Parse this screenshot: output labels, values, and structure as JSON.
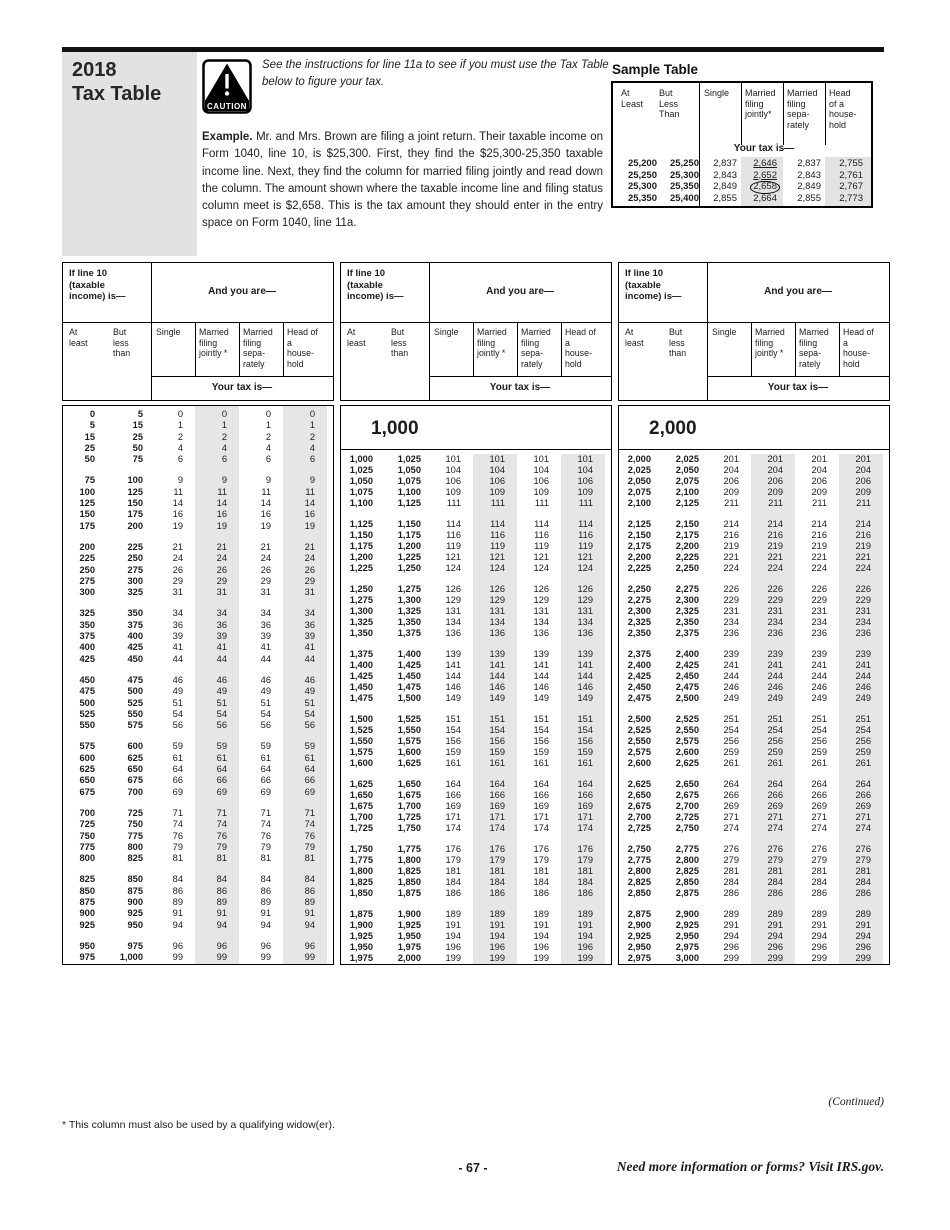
{
  "page": {
    "year": "2018",
    "title": "Tax Table",
    "caution": {
      "label": "CAUTION",
      "text": "See the instructions for line 11a to see if you must use the Tax Table below to figure your tax."
    },
    "example": {
      "lead": "Example.",
      "text": " Mr. and Mrs. Brown are filing a joint return. Their taxable income on Form 1040, line 10, is $25,300. First, they find the $25,300-25,350 taxable income line. Next, they find the column for married filing jointly and read down the column. The amount shown where the taxable income line and filing status column meet is $2,658. This is the tax amount they should enter in the entry space on Form 1040, line 11a."
    }
  },
  "sample_table": {
    "title": "Sample Table",
    "headers": {
      "at_least": "At\nLeast",
      "but_less": "But\nLess\nThan",
      "single": "Single",
      "mfj": "Married\nfiling\njointly*",
      "mfs": "Married\nfiling\nsepa-\nrately",
      "hoh": "Head\nof a\nhouse-\nhold"
    },
    "your_tax_label": "Your tax is—",
    "rows": [
      {
        "at_least": "25,200",
        "but_less": "25,250",
        "single": "2,837",
        "mfj": "2,646",
        "mfs": "2,837",
        "hoh": "2,755",
        "mfj_mark": "underline"
      },
      {
        "at_least": "25,250",
        "but_less": "25,300",
        "single": "2,843",
        "mfj": "2,652",
        "mfs": "2,843",
        "hoh": "2,761",
        "mfj_mark": "underline"
      },
      {
        "at_least": "25,300",
        "but_less": "25,350",
        "single": "2,849",
        "mfj": "2,658",
        "mfs": "2,849",
        "hoh": "2,767",
        "mfj_mark": "circle"
      },
      {
        "at_least": "25,350",
        "but_less": "25,400",
        "single": "2,855",
        "mfj": "2,664",
        "mfs": "2,855",
        "hoh": "2,773",
        "mfj_mark": "none"
      }
    ]
  },
  "column_headers": {
    "if_line": "If line 10\n(taxable\nincome) is—",
    "and_you_are": "And you are—",
    "at_least": "At\nleast",
    "but_less": "But\nless\nthan",
    "single": "Single",
    "mfj": "Married\nfiling\njointly *",
    "mfs": "Married\nfiling\nsepa-\nrately",
    "hoh": "Head of\na\nhouse-\nhold",
    "your_tax_label": "Your tax is—"
  },
  "tax_tables": [
    {
      "section": "",
      "groups": [
        [
          [
            "0",
            "5",
            "0"
          ],
          [
            "5",
            "15",
            "1"
          ],
          [
            "15",
            "25",
            "2"
          ],
          [
            "25",
            "50",
            "4"
          ],
          [
            "50",
            "75",
            "6"
          ]
        ],
        [
          [
            "75",
            "100",
            "9"
          ],
          [
            "100",
            "125",
            "11"
          ],
          [
            "125",
            "150",
            "14"
          ],
          [
            "150",
            "175",
            "16"
          ],
          [
            "175",
            "200",
            "19"
          ]
        ],
        [
          [
            "200",
            "225",
            "21"
          ],
          [
            "225",
            "250",
            "24"
          ],
          [
            "250",
            "275",
            "26"
          ],
          [
            "275",
            "300",
            "29"
          ],
          [
            "300",
            "325",
            "31"
          ]
        ],
        [
          [
            "325",
            "350",
            "34"
          ],
          [
            "350",
            "375",
            "36"
          ],
          [
            "375",
            "400",
            "39"
          ],
          [
            "400",
            "425",
            "41"
          ],
          [
            "425",
            "450",
            "44"
          ]
        ],
        [
          [
            "450",
            "475",
            "46"
          ],
          [
            "475",
            "500",
            "49"
          ],
          [
            "500",
            "525",
            "51"
          ],
          [
            "525",
            "550",
            "54"
          ],
          [
            "550",
            "575",
            "56"
          ]
        ],
        [
          [
            "575",
            "600",
            "59"
          ],
          [
            "600",
            "625",
            "61"
          ],
          [
            "625",
            "650",
            "64"
          ],
          [
            "650",
            "675",
            "66"
          ],
          [
            "675",
            "700",
            "69"
          ]
        ],
        [
          [
            "700",
            "725",
            "71"
          ],
          [
            "725",
            "750",
            "74"
          ],
          [
            "750",
            "775",
            "76"
          ],
          [
            "775",
            "800",
            "79"
          ],
          [
            "800",
            "825",
            "81"
          ]
        ],
        [
          [
            "825",
            "850",
            "84"
          ],
          [
            "850",
            "875",
            "86"
          ],
          [
            "875",
            "900",
            "89"
          ],
          [
            "900",
            "925",
            "91"
          ],
          [
            "925",
            "950",
            "94"
          ]
        ],
        [
          [
            "950",
            "975",
            "96"
          ],
          [
            "975",
            "1,000",
            "99"
          ]
        ]
      ]
    },
    {
      "section": "1,000",
      "groups": [
        [
          [
            "1,000",
            "1,025",
            "101"
          ],
          [
            "1,025",
            "1,050",
            "104"
          ],
          [
            "1,050",
            "1,075",
            "106"
          ],
          [
            "1,075",
            "1,100",
            "109"
          ],
          [
            "1,100",
            "1,125",
            "111"
          ]
        ],
        [
          [
            "1,125",
            "1,150",
            "114"
          ],
          [
            "1,150",
            "1,175",
            "116"
          ],
          [
            "1,175",
            "1,200",
            "119"
          ],
          [
            "1,200",
            "1,225",
            "121"
          ],
          [
            "1,225",
            "1,250",
            "124"
          ]
        ],
        [
          [
            "1,250",
            "1,275",
            "126"
          ],
          [
            "1,275",
            "1,300",
            "129"
          ],
          [
            "1,300",
            "1,325",
            "131"
          ],
          [
            "1,325",
            "1,350",
            "134"
          ],
          [
            "1,350",
            "1,375",
            "136"
          ]
        ],
        [
          [
            "1,375",
            "1,400",
            "139"
          ],
          [
            "1,400",
            "1,425",
            "141"
          ],
          [
            "1,425",
            "1,450",
            "144"
          ],
          [
            "1,450",
            "1,475",
            "146"
          ],
          [
            "1,475",
            "1,500",
            "149"
          ]
        ],
        [
          [
            "1,500",
            "1,525",
            "151"
          ],
          [
            "1,525",
            "1,550",
            "154"
          ],
          [
            "1,550",
            "1,575",
            "156"
          ],
          [
            "1,575",
            "1,600",
            "159"
          ],
          [
            "1,600",
            "1,625",
            "161"
          ]
        ],
        [
          [
            "1,625",
            "1,650",
            "164"
          ],
          [
            "1,650",
            "1,675",
            "166"
          ],
          [
            "1,675",
            "1,700",
            "169"
          ],
          [
            "1,700",
            "1,725",
            "171"
          ],
          [
            "1,725",
            "1,750",
            "174"
          ]
        ],
        [
          [
            "1,750",
            "1,775",
            "176"
          ],
          [
            "1,775",
            "1,800",
            "179"
          ],
          [
            "1,800",
            "1,825",
            "181"
          ],
          [
            "1,825",
            "1,850",
            "184"
          ],
          [
            "1,850",
            "1,875",
            "186"
          ]
        ],
        [
          [
            "1,875",
            "1,900",
            "189"
          ],
          [
            "1,900",
            "1,925",
            "191"
          ],
          [
            "1,925",
            "1,950",
            "194"
          ],
          [
            "1,950",
            "1,975",
            "196"
          ],
          [
            "1,975",
            "2,000",
            "199"
          ]
        ]
      ]
    },
    {
      "section": "2,000",
      "groups": [
        [
          [
            "2,000",
            "2,025",
            "201"
          ],
          [
            "2,025",
            "2,050",
            "204"
          ],
          [
            "2,050",
            "2,075",
            "206"
          ],
          [
            "2,075",
            "2,100",
            "209"
          ],
          [
            "2,100",
            "2,125",
            "211"
          ]
        ],
        [
          [
            "2,125",
            "2,150",
            "214"
          ],
          [
            "2,150",
            "2,175",
            "216"
          ],
          [
            "2,175",
            "2,200",
            "219"
          ],
          [
            "2,200",
            "2,225",
            "221"
          ],
          [
            "2,225",
            "2,250",
            "224"
          ]
        ],
        [
          [
            "2,250",
            "2,275",
            "226"
          ],
          [
            "2,275",
            "2,300",
            "229"
          ],
          [
            "2,300",
            "2,325",
            "231"
          ],
          [
            "2,325",
            "2,350",
            "234"
          ],
          [
            "2,350",
            "2,375",
            "236"
          ]
        ],
        [
          [
            "2,375",
            "2,400",
            "239"
          ],
          [
            "2,400",
            "2,425",
            "241"
          ],
          [
            "2,425",
            "2,450",
            "244"
          ],
          [
            "2,450",
            "2,475",
            "246"
          ],
          [
            "2,475",
            "2,500",
            "249"
          ]
        ],
        [
          [
            "2,500",
            "2,525",
            "251"
          ],
          [
            "2,525",
            "2,550",
            "254"
          ],
          [
            "2,550",
            "2,575",
            "256"
          ],
          [
            "2,575",
            "2,600",
            "259"
          ],
          [
            "2,600",
            "2,625",
            "261"
          ]
        ],
        [
          [
            "2,625",
            "2,650",
            "264"
          ],
          [
            "2,650",
            "2,675",
            "266"
          ],
          [
            "2,675",
            "2,700",
            "269"
          ],
          [
            "2,700",
            "2,725",
            "271"
          ],
          [
            "2,725",
            "2,750",
            "274"
          ]
        ],
        [
          [
            "2,750",
            "2,775",
            "276"
          ],
          [
            "2,775",
            "2,800",
            "279"
          ],
          [
            "2,800",
            "2,825",
            "281"
          ],
          [
            "2,825",
            "2,850",
            "284"
          ],
          [
            "2,850",
            "2,875",
            "286"
          ]
        ],
        [
          [
            "2,875",
            "2,900",
            "289"
          ],
          [
            "2,900",
            "2,925",
            "291"
          ],
          [
            "2,925",
            "2,950",
            "294"
          ],
          [
            "2,950",
            "2,975",
            "296"
          ],
          [
            "2,975",
            "3,000",
            "299"
          ]
        ]
      ]
    }
  ],
  "footer": {
    "continued": "(Continued)",
    "widow_note": "* This column must also be used by a qualifying widow(er).",
    "page_number": "- 67 -",
    "irs_note": "Need more information or forms? Visit IRS.gov."
  },
  "colors": {
    "shade": "#e6e6e6",
    "title_box": "#e2e2e2",
    "bar": "#111111"
  }
}
